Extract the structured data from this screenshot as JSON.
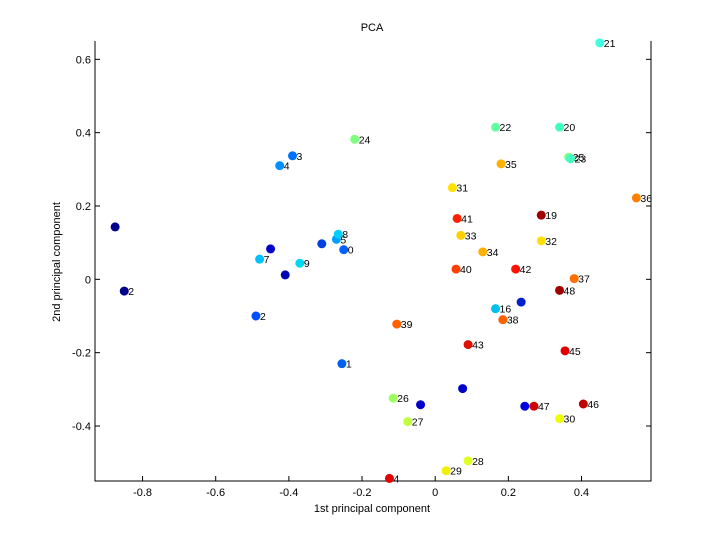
{
  "chart_data": {
    "type": "scatter",
    "title": "PCA",
    "xlabel": "1st principal component",
    "ylabel": "2nd principal component",
    "xlim": [
      -0.93,
      0.59
    ],
    "ylim": [
      -0.55,
      0.65
    ],
    "grid": false,
    "legend": "none",
    "x_ticks": [
      -0.8,
      -0.6,
      -0.4,
      -0.2,
      0,
      0.2,
      0.4
    ],
    "x_tick_labels": [
      "-0.8",
      "-0.6",
      "-0.4",
      "-0.2",
      "0",
      "0.2",
      "0.4"
    ],
    "y_ticks": [
      -0.4,
      -0.2,
      0,
      0.2,
      0.4,
      0.6
    ],
    "y_tick_labels": [
      "-0.4",
      "-0.2",
      "0",
      "0.2",
      "0.4",
      "0.6"
    ],
    "points": [
      {
        "label": "",
        "x": -0.875,
        "y": 0.143,
        "color": "#00008f"
      },
      {
        "label": "2",
        "x": -0.85,
        "y": -0.032,
        "color": "#00008f"
      },
      {
        "label": "2",
        "x": -0.49,
        "y": -0.1,
        "color": "#0050ff"
      },
      {
        "label": "7",
        "x": -0.48,
        "y": 0.055,
        "color": "#00bfff"
      },
      {
        "label": "",
        "x": -0.45,
        "y": 0.083,
        "color": "#0000c8"
      },
      {
        "label": "4",
        "x": -0.425,
        "y": 0.31,
        "color": "#0090ff"
      },
      {
        "label": "",
        "x": -0.41,
        "y": 0.012,
        "color": "#0000b4"
      },
      {
        "label": "3",
        "x": -0.39,
        "y": 0.337,
        "color": "#0070ff"
      },
      {
        "label": "9",
        "x": -0.37,
        "y": 0.044,
        "color": "#00d8f0"
      },
      {
        "label": "",
        "x": -0.31,
        "y": 0.097,
        "color": "#0040e0"
      },
      {
        "label": "5",
        "x": -0.27,
        "y": 0.109,
        "color": "#00a0ff"
      },
      {
        "label": "8",
        "x": -0.265,
        "y": 0.123,
        "color": "#00d0ff"
      },
      {
        "label": "0",
        "x": -0.25,
        "y": 0.081,
        "color": "#0060ff"
      },
      {
        "label": "1",
        "x": -0.255,
        "y": -0.23,
        "color": "#0060f0"
      },
      {
        "label": "24",
        "x": -0.22,
        "y": 0.382,
        "color": "#80ff80"
      },
      {
        "label": "26",
        "x": -0.115,
        "y": -0.324,
        "color": "#a0ff60"
      },
      {
        "label": "39",
        "x": -0.105,
        "y": -0.122,
        "color": "#ff6000"
      },
      {
        "label": "4",
        "x": -0.125,
        "y": -0.543,
        "color": "#e00000"
      },
      {
        "label": "27",
        "x": -0.075,
        "y": -0.388,
        "color": "#c0ff40"
      },
      {
        "label": "",
        "x": -0.04,
        "y": -0.342,
        "color": "#0000c8"
      },
      {
        "label": "29",
        "x": 0.03,
        "y": -0.522,
        "color": "#f0f000"
      },
      {
        "label": "31",
        "x": 0.047,
        "y": 0.25,
        "color": "#ffe000"
      },
      {
        "label": "40",
        "x": 0.057,
        "y": 0.028,
        "color": "#ff4000"
      },
      {
        "label": "41",
        "x": 0.06,
        "y": 0.166,
        "color": "#ff2000"
      },
      {
        "label": "33",
        "x": 0.07,
        "y": 0.12,
        "color": "#ffd000"
      },
      {
        "label": "",
        "x": 0.075,
        "y": -0.298,
        "color": "#0000c8"
      },
      {
        "label": "43",
        "x": 0.09,
        "y": -0.178,
        "color": "#e01000"
      },
      {
        "label": "28",
        "x": 0.09,
        "y": -0.495,
        "color": "#e0ff20"
      },
      {
        "label": "34",
        "x": 0.13,
        "y": 0.075,
        "color": "#ffb000"
      },
      {
        "label": "22",
        "x": 0.165,
        "y": 0.415,
        "color": "#60ffa0"
      },
      {
        "label": "16",
        "x": 0.165,
        "y": -0.08,
        "color": "#00c0f0"
      },
      {
        "label": "35",
        "x": 0.18,
        "y": 0.315,
        "color": "#ffb000"
      },
      {
        "label": "38",
        "x": 0.185,
        "y": -0.11,
        "color": "#ff6000"
      },
      {
        "label": "42",
        "x": 0.22,
        "y": 0.028,
        "color": "#ff1000"
      },
      {
        "label": "",
        "x": 0.235,
        "y": -0.062,
        "color": "#0020d0"
      },
      {
        "label": "",
        "x": 0.245,
        "y": -0.346,
        "color": "#0000e0"
      },
      {
        "label": "47",
        "x": 0.27,
        "y": -0.346,
        "color": "#d00000"
      },
      {
        "label": "19",
        "x": 0.29,
        "y": 0.175,
        "color": "#a00000"
      },
      {
        "label": "32",
        "x": 0.29,
        "y": 0.105,
        "color": "#ffe000"
      },
      {
        "label": "48",
        "x": 0.34,
        "y": -0.03,
        "color": "#a00000"
      },
      {
        "label": "20",
        "x": 0.34,
        "y": 0.415,
        "color": "#40ffc0"
      },
      {
        "label": "30",
        "x": 0.34,
        "y": -0.38,
        "color": "#f0ff00"
      },
      {
        "label": "45",
        "x": 0.355,
        "y": -0.195,
        "color": "#e00000"
      },
      {
        "label": "25",
        "x": 0.365,
        "y": 0.333,
        "color": "#80ff80"
      },
      {
        "label": "23",
        "x": 0.37,
        "y": 0.329,
        "color": "#40ffc0"
      },
      {
        "label": "37",
        "x": 0.38,
        "y": 0.002,
        "color": "#ff7000"
      },
      {
        "label": "46",
        "x": 0.405,
        "y": -0.34,
        "color": "#c00000"
      },
      {
        "label": "21",
        "x": 0.45,
        "y": 0.645,
        "color": "#40ffe0"
      },
      {
        "label": "36",
        "x": 0.55,
        "y": 0.222,
        "color": "#ff8000"
      }
    ]
  }
}
